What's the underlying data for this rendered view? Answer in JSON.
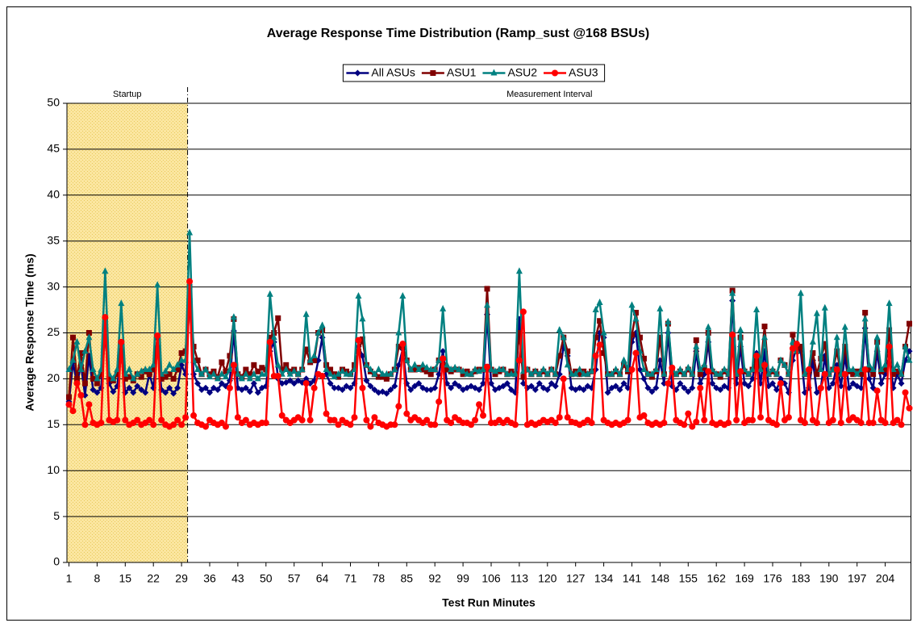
{
  "chart_data": {
    "type": "line",
    "title": "Average Response Time Distribution (Ramp_sust @168 BSUs)",
    "x_label": "Test Run Minutes",
    "y_label": "Average Response Time (ms)",
    "annotations": [
      {
        "text": "Startup",
        "xlim": [
          0.5,
          30.5
        ]
      },
      {
        "text": "Measurement Interval",
        "xlim": [
          30.5,
          210.5
        ]
      }
    ],
    "xlim": [
      0.5,
      210.5
    ],
    "xticks": [
      1,
      8,
      15,
      22,
      29,
      36,
      43,
      50,
      57,
      64,
      71,
      78,
      85,
      92,
      99,
      106,
      113,
      120,
      127,
      134,
      141,
      148,
      155,
      162,
      169,
      176,
      183,
      190,
      197,
      204
    ],
    "ylim": [
      0,
      50
    ],
    "yticks": [
      0,
      5,
      10,
      15,
      20,
      25,
      30,
      35,
      40,
      45,
      50
    ],
    "grid": true,
    "legend": "top",
    "x": [
      1,
      2,
      3,
      4,
      5,
      6,
      7,
      8,
      9,
      10,
      11,
      12,
      13,
      14,
      15,
      16,
      17,
      18,
      19,
      20,
      21,
      22,
      23,
      24,
      25,
      26,
      27,
      28,
      29,
      30,
      31,
      32,
      33,
      34,
      35,
      36,
      37,
      38,
      39,
      40,
      41,
      42,
      43,
      44,
      45,
      46,
      47,
      48,
      49,
      50,
      51,
      52,
      53,
      54,
      55,
      56,
      57,
      58,
      59,
      60,
      61,
      62,
      63,
      64,
      65,
      66,
      67,
      68,
      69,
      70,
      71,
      72,
      73,
      74,
      75,
      76,
      77,
      78,
      79,
      80,
      81,
      82,
      83,
      84,
      85,
      86,
      87,
      88,
      89,
      90,
      91,
      92,
      93,
      94,
      95,
      96,
      97,
      98,
      99,
      100,
      101,
      102,
      103,
      104,
      105,
      106,
      107,
      108,
      109,
      110,
      111,
      112,
      113,
      114,
      115,
      116,
      117,
      118,
      119,
      120,
      121,
      122,
      123,
      124,
      125,
      126,
      127,
      128,
      129,
      130,
      131,
      132,
      133,
      134,
      135,
      136,
      137,
      138,
      139,
      140,
      141,
      142,
      143,
      144,
      145,
      146,
      147,
      148,
      149,
      150,
      151,
      152,
      153,
      154,
      155,
      156,
      157,
      158,
      159,
      160,
      161,
      162,
      163,
      164,
      165,
      166,
      167,
      168,
      169,
      170,
      171,
      172,
      173,
      174,
      175,
      176,
      177,
      178,
      179,
      180,
      181,
      182,
      183,
      184,
      185,
      186,
      187,
      188,
      189,
      190,
      191,
      192,
      193,
      194,
      195,
      196,
      197,
      198,
      199,
      200,
      201,
      202,
      203,
      204,
      205,
      206,
      207,
      208,
      209,
      210
    ],
    "series": [
      {
        "name": "All ASUs",
        "color": "#000080",
        "marker": "diamond",
        "values": [
          17.5,
          21.8,
          19.5,
          21.5,
          18.2,
          22.5,
          18.8,
          18.5,
          19,
          25,
          19.5,
          18.6,
          19.2,
          22.8,
          18.5,
          19,
          18.5,
          19.2,
          18.8,
          18.5,
          20.5,
          19,
          23.5,
          18.8,
          18.5,
          19,
          18.4,
          19,
          21.5,
          20.5,
          28.7,
          20.5,
          19.5,
          18.8,
          19,
          18.5,
          19,
          18.8,
          19.5,
          19.2,
          19.8,
          25.2,
          19,
          18.8,
          19,
          18.6,
          19.5,
          18.5,
          19,
          19.2,
          23,
          24,
          20,
          19.5,
          19.6,
          19.8,
          19.5,
          19.8,
          19.6,
          20,
          19.5,
          19.8,
          22,
          24.5,
          20.5,
          19.5,
          19,
          19,
          18.8,
          19.2,
          19,
          19.5,
          23.5,
          22.5,
          19.8,
          19.2,
          18.8,
          18.5,
          18.6,
          18.4,
          18.8,
          19.2,
          21.5,
          23.2,
          19.5,
          18.8,
          19.2,
          19.5,
          19,
          18.8,
          18.8,
          19,
          20.5,
          23,
          19.5,
          19,
          19.5,
          19.2,
          18.8,
          19,
          19.2,
          19,
          18.8,
          19.5,
          27,
          19.5,
          18.8,
          19,
          19.2,
          19.5,
          18.8,
          18.5,
          26.5,
          19.5,
          19,
          19.2,
          18.8,
          19.5,
          19,
          18.8,
          19.5,
          19.2,
          20.5,
          23.5,
          22.5,
          19,
          18.8,
          19,
          18.8,
          19.2,
          19,
          21,
          25,
          24.5,
          18.5,
          19,
          19.2,
          18.8,
          19.5,
          19,
          24,
          25,
          21,
          20,
          19,
          18.6,
          19,
          22,
          19.5,
          25,
          19.2,
          18.8,
          19.5,
          19,
          18.6,
          19,
          23,
          19.5,
          20.5,
          24,
          19.5,
          19,
          18.8,
          19.2,
          19,
          28.5,
          19.5,
          23.5,
          19.5,
          19.2,
          20,
          22.8,
          19.5,
          23,
          19.2,
          19.5,
          18.8,
          20,
          19.5,
          18.5,
          22,
          23.5,
          23,
          18.5,
          19,
          22,
          18.5,
          19,
          22.5,
          19,
          19.5,
          21.5,
          19.2,
          22.5,
          19,
          19.5,
          19.2,
          19,
          25.5,
          20,
          19,
          23,
          19.5,
          20.5,
          22.5,
          19,
          20.5,
          19.5,
          22,
          23
        ]
      },
      {
        "name": "ASU1",
        "color": "#800000",
        "marker": "square",
        "values": [
          18,
          24.5,
          20,
          22.8,
          19.5,
          25,
          20,
          19.5,
          20.5,
          26.5,
          20,
          19.8,
          20.5,
          24,
          20,
          20.2,
          19.8,
          20.5,
          20.2,
          20.8,
          20.5,
          21,
          24.5,
          20,
          20.2,
          20.5,
          20,
          21,
          22.8,
          23,
          30,
          23.5,
          22,
          20.5,
          21,
          20.5,
          20.8,
          20.2,
          21.8,
          20.8,
          22.5,
          26.5,
          20.5,
          20.2,
          21,
          20.5,
          21.5,
          20.8,
          21.2,
          21,
          24.5,
          25,
          26.6,
          21,
          21.5,
          20.8,
          21,
          20.5,
          21,
          23.2,
          21.8,
          22,
          25,
          25.3,
          21.5,
          21,
          20.5,
          20.2,
          21,
          20.8,
          20.5,
          21.5,
          23,
          24.3,
          21.5,
          20.8,
          20.5,
          20.2,
          20.2,
          20,
          20.5,
          21,
          23.5,
          23.5,
          22,
          21,
          21,
          21.2,
          21,
          20.8,
          20.5,
          21,
          22,
          21.5,
          21,
          20.8,
          21,
          21,
          20.5,
          20.8,
          20.5,
          20.8,
          21,
          21,
          29.8,
          21,
          20.5,
          20.8,
          21,
          20.5,
          20.8,
          20.5,
          25,
          20.2,
          21,
          20.5,
          20.8,
          20.5,
          20.8,
          20.5,
          21,
          20.5,
          22.5,
          24.5,
          23,
          20.5,
          20.8,
          20.5,
          20.8,
          20.5,
          20.8,
          24.5,
          26.3,
          22.8,
          20.5,
          20.5,
          20.8,
          20.5,
          21.5,
          20.8,
          24.8,
          27.2,
          24.5,
          22.2,
          20.5,
          20.2,
          20.8,
          24.5,
          20.5,
          26,
          20.8,
          20.5,
          20.8,
          20.5,
          21,
          20.5,
          24.2,
          20.5,
          21.2,
          25,
          20.8,
          20.5,
          20.2,
          20.8,
          20.5,
          29.6,
          20.5,
          24.5,
          20.8,
          20.5,
          21,
          22,
          21.2,
          25.7,
          20.5,
          20.8,
          20.5,
          22,
          21.5,
          20.5,
          24.8,
          23,
          23.5,
          20.5,
          20.8,
          22.8,
          20.5,
          22.2,
          23.8,
          20.5,
          21,
          23,
          20.5,
          23.5,
          20.8,
          20.5,
          20.8,
          20.5,
          27.2,
          21,
          20.5,
          24,
          20.8,
          21,
          25.3,
          20.5,
          20.8,
          20.5,
          23.5,
          26
        ]
      },
      {
        "name": "ASU2",
        "color": "#008080",
        "marker": "triangle",
        "values": [
          21,
          22,
          24,
          21,
          23,
          24.5,
          21,
          20,
          21,
          31.7,
          20.5,
          20,
          21,
          28.2,
          20.5,
          21,
          20,
          20.5,
          20.8,
          21,
          21,
          21.5,
          30.2,
          20.5,
          20.8,
          21.5,
          21,
          21.5,
          22,
          22,
          35.9,
          22,
          21,
          20.5,
          21,
          20.2,
          20.5,
          20,
          20.5,
          20.2,
          21,
          26.7,
          20.5,
          20,
          20.5,
          20,
          20.5,
          20,
          20.5,
          20.5,
          29.2,
          24.5,
          21.5,
          20.5,
          21,
          20.5,
          20.8,
          20.5,
          21,
          27,
          22,
          22.5,
          25,
          25.8,
          21,
          20.5,
          20.2,
          20.5,
          20.8,
          20.5,
          20.5,
          21,
          29,
          26.5,
          21.5,
          21,
          20.5,
          21,
          20.5,
          20.5,
          20.5,
          21,
          25,
          29,
          22,
          21,
          21.5,
          21,
          21.5,
          21.2,
          21,
          21,
          22,
          27.6,
          21.5,
          21,
          21.2,
          21,
          20.8,
          20.5,
          20.5,
          21,
          20.8,
          21,
          28,
          21,
          20.8,
          21,
          21,
          20.5,
          20.5,
          20.5,
          31.7,
          20.8,
          21,
          20.5,
          20.8,
          20.5,
          21,
          20.5,
          21,
          20.5,
          25.3,
          24.5,
          21.5,
          20.5,
          20.5,
          21,
          20.5,
          20.5,
          20.8,
          27.5,
          28.3,
          25,
          20.5,
          20.5,
          21,
          20.5,
          22,
          21,
          28,
          26.5,
          23,
          21,
          20.5,
          20.5,
          21,
          27.6,
          20.5,
          26.2,
          21,
          20.5,
          21,
          20.5,
          21.2,
          20.5,
          23.5,
          21,
          21.5,
          25.6,
          21,
          20.5,
          20.5,
          21,
          20.5,
          29.3,
          20.5,
          25.3,
          21,
          20.5,
          21,
          27.5,
          21,
          24.5,
          20.5,
          21,
          20.5,
          22,
          21.5,
          20.5,
          24,
          23,
          29.3,
          20.5,
          21,
          24,
          27.1,
          21,
          27.7,
          20.5,
          21,
          24.5,
          20.5,
          25.6,
          21,
          21,
          20.5,
          21,
          26.5,
          21.5,
          21,
          24.5,
          21,
          21.5,
          28.2,
          21,
          21.5,
          20.5,
          23.5,
          22
        ]
      },
      {
        "name": "ASU3",
        "color": "#ff0000",
        "marker": "circle",
        "values": [
          17.2,
          16.5,
          19.5,
          18.2,
          15,
          17.2,
          15.2,
          15,
          15.2,
          26.7,
          15.5,
          15.3,
          15.5,
          24,
          15.5,
          15,
          15.2,
          15.5,
          15,
          15.2,
          15.5,
          15,
          24.7,
          15.5,
          15,
          14.8,
          15,
          15.5,
          15,
          15.8,
          30.6,
          16,
          15.2,
          15,
          14.8,
          15.5,
          15.2,
          15,
          15.2,
          14.8,
          19,
          21.5,
          15.8,
          15.2,
          15.5,
          15,
          15.2,
          15,
          15.2,
          15.2,
          24,
          20.3,
          20.3,
          16,
          15.5,
          15.2,
          15.5,
          15.8,
          15.5,
          19.5,
          15.5,
          19,
          20.5,
          20.3,
          16.2,
          15.5,
          15.5,
          15,
          15.5,
          15.2,
          15,
          15.8,
          24.2,
          19,
          15.5,
          14.8,
          15.8,
          15.2,
          15,
          14.8,
          15,
          15,
          17,
          23.8,
          16.2,
          15.5,
          15.8,
          15.5,
          15.2,
          15.5,
          15,
          15,
          17.5,
          22.2,
          15.5,
          15.2,
          15.8,
          15.5,
          15.2,
          15.2,
          15,
          15.5,
          17.2,
          16,
          21.3,
          15.2,
          15.2,
          15.5,
          15.2,
          15.5,
          15.2,
          15,
          22,
          27.3,
          15,
          15.2,
          15,
          15.2,
          15.5,
          15.3,
          15.5,
          15.2,
          15.8,
          20,
          15.8,
          15.3,
          15.2,
          15,
          15.2,
          15.5,
          15.2,
          22.5,
          23.7,
          15.5,
          15.2,
          15,
          15.2,
          15,
          15.2,
          15.5,
          21,
          22.8,
          15.8,
          16,
          15.2,
          15,
          15.2,
          15,
          15.2,
          19.5,
          21.2,
          15.5,
          15.2,
          15,
          16.2,
          14.8,
          15.3,
          19,
          15.5,
          20.8,
          15.2,
          15,
          15.2,
          15,
          15.2,
          24.8,
          15.5,
          20.8,
          15.2,
          15.5,
          15.5,
          22.5,
          15.8,
          21.5,
          15.5,
          15.2,
          15,
          19.5,
          15.5,
          15.8,
          23.3,
          23.8,
          15.5,
          15.2,
          21,
          15.5,
          15.2,
          19,
          20.5,
          15.2,
          15.5,
          21,
          15.2,
          20.5,
          15.5,
          15.8,
          15.5,
          15.2,
          21,
          15.2,
          15.2,
          18.7,
          15.5,
          15.2,
          23.5,
          15.2,
          15.5,
          15,
          18.5,
          16.8
        ]
      }
    ]
  }
}
